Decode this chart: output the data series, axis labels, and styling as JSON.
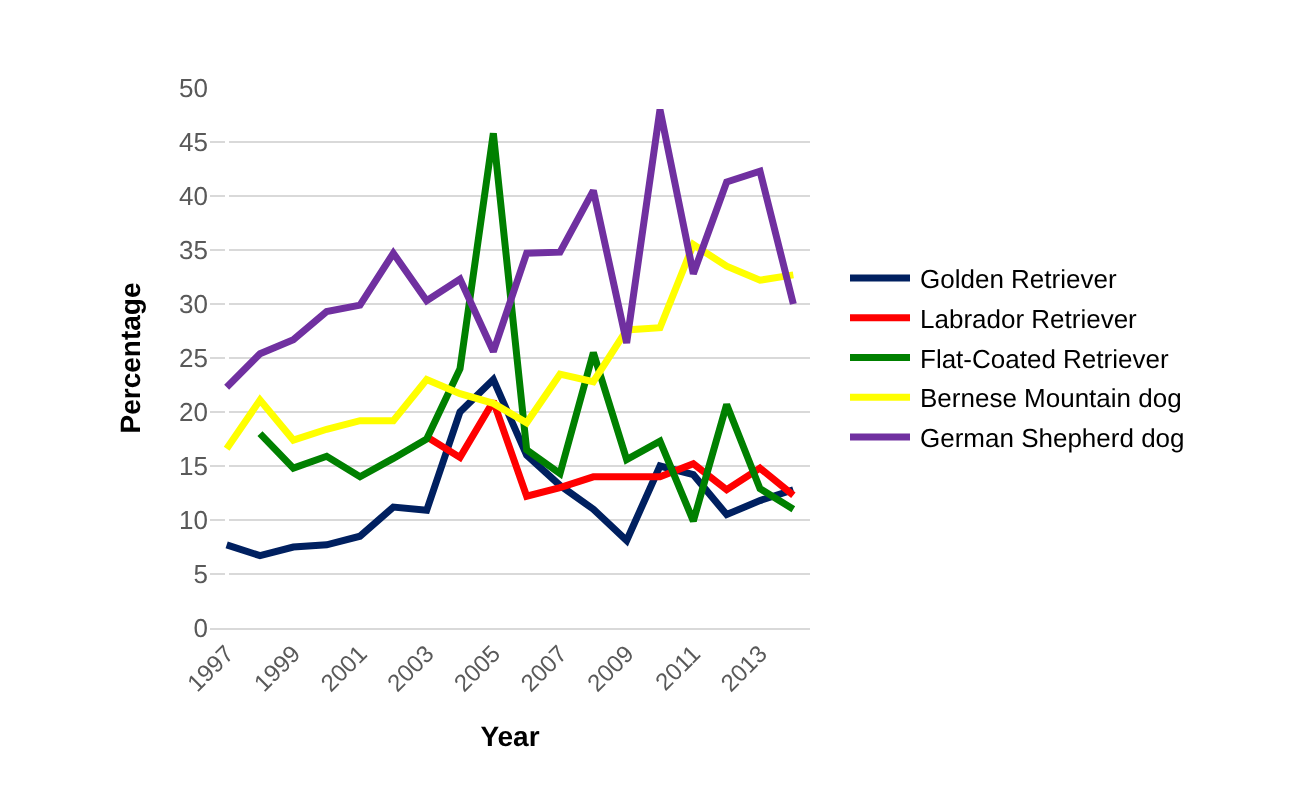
{
  "chart_data": {
    "type": "line",
    "xlabel": "Year",
    "ylabel": "Percentage",
    "categories": [
      "1997",
      null,
      "1999",
      null,
      "2001",
      null,
      "2003",
      null,
      "2005",
      null,
      "2007",
      null,
      "2009",
      null,
      "2011",
      null,
      "2013",
      null
    ],
    "series": [
      {
        "name": "Golden Retriever",
        "color": "#002060",
        "values": [
          7.7,
          6.7,
          7.5,
          7.7,
          8.5,
          11.2,
          10.9,
          20,
          23,
          16,
          13.2,
          11,
          8.1,
          15,
          14.2,
          10.5,
          11.8,
          12.8
        ]
      },
      {
        "name": "Labrador Retriever",
        "color": "#ff0000",
        "values": [
          null,
          null,
          null,
          null,
          null,
          null,
          17.7,
          15.8,
          21,
          12.2,
          13,
          14,
          14,
          14,
          15.2,
          12.8,
          14.8,
          12.3
        ]
      },
      {
        "name": "Flat-Coated Retriever",
        "color": "#008000",
        "values": [
          null,
          18,
          14.8,
          15.9,
          14,
          15.7,
          17.5,
          24,
          45.8,
          16.5,
          14.3,
          25.5,
          15.6,
          17.3,
          9.9,
          20.7,
          12.9,
          11
        ]
      },
      {
        "name": "Bernese Mountain dog",
        "color": "#ffff00",
        "values": [
          16.6,
          21.1,
          17.4,
          18.4,
          19.2,
          19.2,
          23,
          21.7,
          20.8,
          19,
          23.5,
          22.8,
          27.6,
          27.8,
          35.5,
          33.5,
          32.2,
          32.7
        ]
      },
      {
        "name": "German Shepherd dog",
        "color": "#7030a0",
        "values": [
          22.3,
          25.4,
          26.7,
          29.3,
          29.9,
          34.7,
          30.3,
          32.3,
          25.6,
          34.7,
          34.8,
          40.5,
          26.4,
          48,
          32.8,
          41.3,
          42.3,
          30
        ]
      }
    ],
    "ylim": [
      0,
      50
    ],
    "yticks": [
      0,
      5,
      10,
      15,
      20,
      25,
      30,
      35,
      40,
      45,
      50
    ],
    "grid": "y",
    "legend": "right",
    "marker": "none",
    "line_style": "solid"
  }
}
